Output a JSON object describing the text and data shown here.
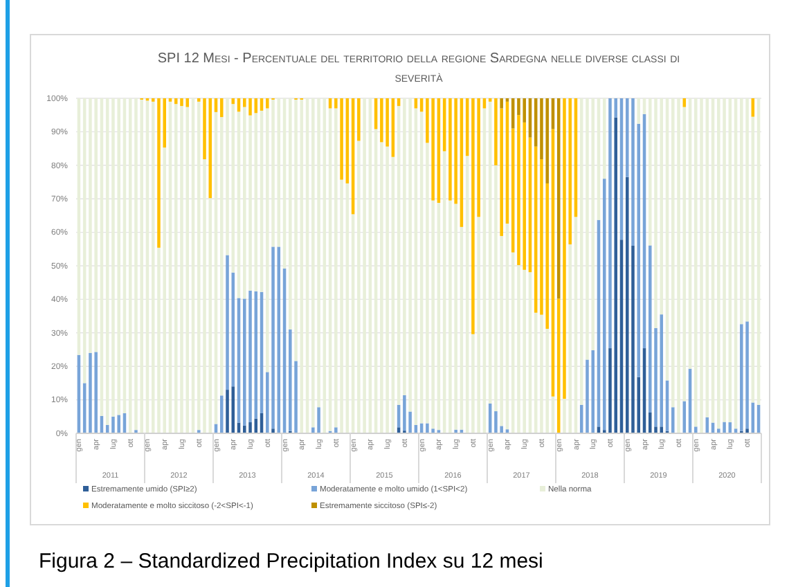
{
  "chart_data": {
    "type": "bar",
    "stacked": true,
    "title": "SPI 12 Mesi - Percentuale del territorio della regione Sardegna nelle diverse classi di severità",
    "categories": [
      "gen",
      null,
      null,
      "apr",
      null,
      null,
      "lug",
      null,
      null,
      "ott",
      null,
      null,
      "gen",
      null,
      null,
      "apr",
      null,
      null,
      "lug",
      null,
      null,
      "ott",
      null,
      null,
      "gen",
      null,
      null,
      "apr",
      null,
      null,
      "lug",
      null,
      null,
      "ott",
      null,
      null,
      "gen",
      null,
      null,
      "apr",
      null,
      null,
      "lug",
      null,
      null,
      "ott",
      null,
      null,
      "gen",
      null,
      null,
      "apr",
      null,
      null,
      "lug",
      null,
      null,
      "ott",
      null,
      null,
      "gen",
      null,
      null,
      "apr",
      null,
      null,
      "lug",
      null,
      null,
      "ott",
      null,
      null,
      "gen",
      null,
      null,
      "apr",
      null,
      null,
      "lug",
      null,
      null,
      "ott",
      null,
      null,
      "gen",
      null,
      null,
      "apr",
      null,
      null,
      "lug",
      null,
      null,
      "ott",
      null,
      null,
      "gen",
      null,
      null,
      "apr",
      null,
      null,
      "lug",
      null,
      null,
      "ott",
      null,
      null,
      "gen",
      null,
      null,
      "apr",
      null,
      null,
      "lug",
      null,
      null,
      "ott",
      null,
      null
    ],
    "series": [
      {
        "name": "Estremamente  umido (SPI≥2)",
        "color": "#2f5f98",
        "values": [
          0,
          0,
          0,
          0,
          0,
          0,
          0,
          0,
          0,
          0,
          0,
          0,
          0,
          0,
          0,
          0,
          0,
          0,
          0,
          0,
          0,
          0,
          0,
          0,
          0,
          0,
          13,
          14,
          3.2,
          2.3,
          3.3,
          4.4,
          6,
          0,
          1.4,
          0,
          0,
          0.7,
          0,
          0,
          0,
          0,
          0,
          0,
          0,
          0,
          0,
          0,
          0,
          0,
          0,
          0,
          0,
          0,
          0,
          0,
          1.8,
          0.8,
          0,
          0,
          0,
          0,
          0,
          0,
          0,
          0,
          0,
          0,
          0,
          0,
          0,
          0,
          0,
          0,
          0,
          0,
          0,
          0,
          0,
          0,
          0,
          0,
          0,
          0,
          0,
          0,
          0,
          0,
          0,
          0,
          0,
          2,
          1,
          25.4,
          94.3,
          57.8,
          76.5,
          56,
          16.8,
          25.4,
          6.2,
          2,
          2,
          0.7,
          0,
          0,
          0,
          0,
          0,
          0,
          0,
          0,
          0,
          0,
          0,
          0,
          0.7,
          1.4,
          0,
          0
        ]
      },
      {
        "name": "Moderatamente e molto umido (1<SPI<2)",
        "color": "#78a4d8",
        "values": [
          23.4,
          15,
          24,
          24.3,
          5.2,
          2.5,
          5,
          5.5,
          6,
          0,
          1,
          0,
          0,
          0,
          0,
          0,
          0,
          0,
          0,
          0,
          0,
          1,
          0,
          0,
          2.8,
          11.3,
          40.2,
          34,
          37.2,
          37.9,
          39.3,
          38,
          36.2,
          18.3,
          54.3,
          55.7,
          49.2,
          30.3,
          21.6,
          0,
          0,
          1.8,
          7.8,
          0,
          0.7,
          1.8,
          0,
          0,
          0,
          0,
          0,
          0,
          0,
          0,
          0,
          0,
          6.7,
          10.6,
          6.5,
          2.5,
          3,
          3,
          1.4,
          1,
          0,
          0,
          1.1,
          1.1,
          0,
          0,
          0,
          0,
          8.9,
          6.6,
          2.2,
          1.2,
          0,
          0,
          0,
          0,
          0,
          0,
          0,
          0,
          0,
          0,
          0,
          0,
          8.5,
          22,
          24.8,
          61.7,
          75,
          74.6,
          5.7,
          42.2,
          23.5,
          44,
          75.6,
          69.9,
          49.9,
          29.4,
          33.5,
          15.1,
          7.8,
          0,
          9.6,
          19.3,
          2,
          0,
          4.8,
          3.2,
          1.4,
          3.4,
          3.3,
          1.4,
          31.9,
          32,
          9.2,
          8.5
        ]
      },
      {
        "name": "Nella norma",
        "color": "#e8efd9",
        "values": [
          76.6,
          85,
          76,
          75.7,
          94.8,
          97.5,
          95,
          94.5,
          94,
          100,
          99,
          99.6,
          99.3,
          99,
          55.4,
          85.3,
          99,
          98.3,
          97.7,
          97.4,
          100,
          98,
          81.8,
          70.2,
          93.1,
          83.1,
          46.8,
          50.3,
          55.6,
          57.2,
          52.3,
          53.2,
          54.1,
          78.7,
          43.9,
          44.3,
          50.8,
          69,
          78,
          99.6,
          100,
          98.2,
          92.2,
          100,
          96.3,
          95.2,
          75.7,
          74.6,
          65.4,
          87.3,
          100,
          100,
          90.8,
          86.9,
          85.6,
          82.5,
          89.2,
          88.6,
          93.5,
          94.5,
          93,
          83.7,
          68.1,
          67.8,
          84.2,
          69.5,
          67.4,
          60.5,
          82.8,
          29.6,
          64.6,
          97,
          90.1,
          73.4,
          56.7,
          61.4,
          54,
          50.2,
          48.8,
          48.1,
          36,
          35.4,
          31.2,
          11,
          0,
          10.3,
          56.4,
          64.6,
          91.5,
          78,
          75.2,
          36.3,
          24,
          0,
          0,
          0,
          0,
          0,
          7.6,
          4.7,
          43.9,
          68.6,
          64.5,
          84.2,
          92.2,
          100,
          87.8,
          80.7,
          98,
          100,
          95.2,
          96.8,
          98.6,
          96.6,
          96.7,
          98.6,
          67.4,
          66.6,
          85.3,
          91.5
        ]
      },
      {
        "name": "Moderatamente e molto siccitoso (-2<SPI<-1)",
        "color": "#ffc000",
        "values": [
          0,
          0,
          0,
          0,
          0,
          0,
          0,
          0,
          0,
          0,
          0,
          0.4,
          0.7,
          1,
          44.6,
          14.7,
          1,
          1.7,
          2.3,
          2.6,
          0,
          1,
          18.2,
          29.8,
          4.1,
          5.6,
          0,
          1.7,
          4,
          2.6,
          5.1,
          4.4,
          3.7,
          3,
          0.4,
          0,
          0,
          0,
          0.4,
          0.4,
          0,
          0,
          0,
          0,
          3,
          3,
          24.3,
          25.4,
          34.6,
          12.7,
          0,
          0,
          9.2,
          13.1,
          14.4,
          17.5,
          2.3,
          0,
          0,
          3,
          4,
          13.3,
          30.5,
          31.2,
          15.8,
          30.5,
          31.5,
          38.4,
          17.2,
          70.4,
          35.4,
          3,
          1,
          20,
          38.1,
          36.4,
          37,
          44.8,
          44,
          40.2,
          49.6,
          46.4,
          43.4,
          79.8,
          40.2,
          89.7,
          43.6,
          35.4,
          0,
          0,
          0,
          0,
          0,
          0,
          0,
          0,
          0,
          0,
          0,
          0,
          0,
          0,
          0,
          0,
          0,
          0,
          2.6,
          0,
          0,
          0,
          0,
          0,
          0,
          0,
          0,
          0,
          0,
          0,
          5.5,
          0
        ]
      },
      {
        "name": "Estremamente  siccitoso (SPI≤-2)",
        "color": "#bf9000",
        "values": [
          0,
          0,
          0,
          0,
          0,
          0,
          0,
          0,
          0,
          0,
          0,
          0,
          0,
          0,
          0,
          0,
          0,
          0,
          0,
          0,
          0,
          0,
          0,
          0,
          0,
          0,
          0,
          0,
          0,
          0,
          0,
          0,
          0,
          0,
          0,
          0,
          0,
          0,
          0,
          0,
          0,
          0,
          0,
          0,
          0,
          0,
          0,
          0,
          0,
          0,
          0,
          0,
          0,
          0,
          0,
          0,
          0,
          0,
          0,
          0,
          0,
          0,
          0,
          0,
          0,
          0,
          0,
          0,
          0,
          0,
          0,
          0,
          0,
          0,
          3,
          1,
          9,
          5,
          7.2,
          11.7,
          14.4,
          18.2,
          25.4,
          9.2,
          59.8,
          0,
          0,
          0,
          0,
          0,
          0,
          0,
          0,
          0,
          0,
          0,
          0,
          0,
          0,
          0,
          0,
          0,
          0,
          0,
          0,
          0,
          0,
          0,
          0,
          0,
          0,
          0,
          0,
          0,
          0,
          0,
          0,
          0,
          0,
          0
        ]
      }
    ],
    "ylim": [
      0,
      100
    ],
    "yticks": [
      {
        "value": 0,
        "label": "0%"
      },
      {
        "value": 10,
        "label": "10%"
      },
      {
        "value": 20,
        "label": "20%"
      },
      {
        "value": 30,
        "label": "30%"
      },
      {
        "value": 40,
        "label": "40%"
      },
      {
        "value": 50,
        "label": "50%"
      },
      {
        "value": 60,
        "label": "60%"
      },
      {
        "value": 70,
        "label": "70%"
      },
      {
        "value": 80,
        "label": "80%"
      },
      {
        "value": 90,
        "label": "90%"
      },
      {
        "value": 100,
        "label": "100%"
      }
    ],
    "grid": "y",
    "legend": "bottom",
    "annotations": [
      "Figura 2 – Standardized Precipitation Index su 12 mesi",
      "2011",
      "2012",
      "2013",
      "2014",
      "2015",
      "2016",
      "2017",
      "2018",
      "2019",
      "2020"
    ]
  }
}
